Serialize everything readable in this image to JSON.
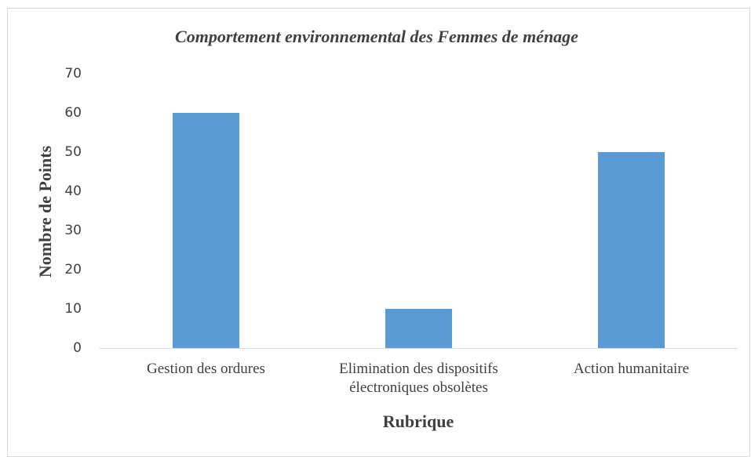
{
  "chart_data": {
    "type": "bar",
    "title": "Comportement environnemental des Femmes de ménage",
    "categories": [
      "Gestion des ordures",
      "Elimination des dispositifs électroniques obsolètes",
      "Action humanitaire"
    ],
    "values": [
      60,
      10,
      50
    ],
    "color": "#5b9bd5",
    "xlabel": "Rubrique",
    "ylabel": "Nombre de Points",
    "ylim": [
      0,
      70
    ],
    "yticks": [
      0,
      10,
      20,
      30,
      40,
      50,
      60,
      70
    ],
    "grid": false
  }
}
